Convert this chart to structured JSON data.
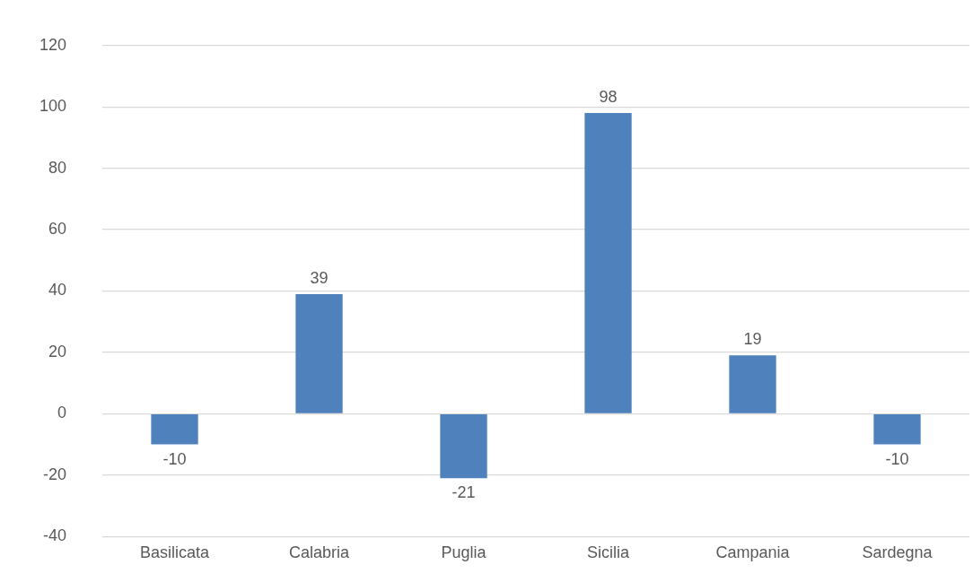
{
  "chart_data": {
    "type": "bar",
    "categories": [
      "Basilicata",
      "Calabria",
      "Puglia",
      "Sicilia",
      "Campania",
      "Sardegna"
    ],
    "values": [
      -10,
      39,
      -21,
      98,
      19,
      -10
    ],
    "color": "#4f81bd",
    "ylim": [
      -40,
      120
    ],
    "yticks": [
      -40,
      -20,
      0,
      20,
      40,
      60,
      80,
      100,
      120
    ],
    "grid": "y",
    "data_labels": true,
    "legend": false
  }
}
